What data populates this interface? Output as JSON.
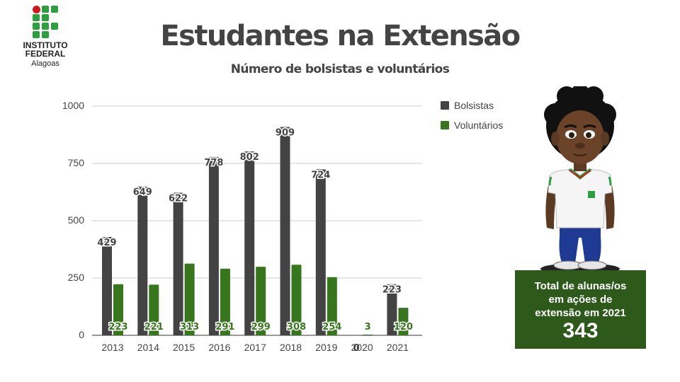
{
  "logo": {
    "name_line1": "INSTITUTO",
    "name_line2": "FEDERAL",
    "subtitle": "Alagoas",
    "red": "#cd191e",
    "green": "#2f9e41"
  },
  "header": {
    "title": "Estudantes na Extensão",
    "subtitle": "Número de bolsistas e voluntários"
  },
  "chart_data": {
    "type": "bar",
    "categories": [
      "2013",
      "2014",
      "2015",
      "2016",
      "2017",
      "2018",
      "2019",
      "2020",
      "2021"
    ],
    "series": [
      {
        "name": "Bolsistas",
        "color": "#434343",
        "values": [
          429,
          649,
          622,
          778,
          802,
          909,
          724,
          0,
          223
        ]
      },
      {
        "name": "Voluntários",
        "color": "#38761d",
        "values": [
          223,
          221,
          313,
          291,
          299,
          308,
          254,
          3,
          120
        ]
      }
    ],
    "yticks": [
      "0",
      "250",
      "500",
      "750",
      "1000"
    ],
    "ylim": [
      0,
      1000
    ],
    "grid": true,
    "legend_position": "top-right"
  },
  "summary": {
    "line1": "Total de alunas/os",
    "line2": "em ações de",
    "line3": "extensão em 2021",
    "value": "343",
    "background": "#2d5a1b"
  },
  "character": {
    "icon": "student-mascot-icon"
  }
}
